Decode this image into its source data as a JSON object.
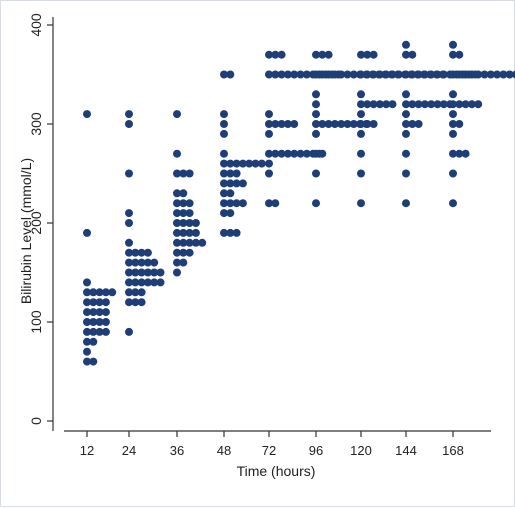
{
  "chart_data": {
    "type": "scatter",
    "xlabel": "Time (hours)",
    "ylabel": "Bilirubin Level (mmol/L)",
    "ylim": [
      0,
      400
    ],
    "yticks": [
      0,
      100,
      200,
      300,
      400
    ],
    "categories": [
      "12",
      "24",
      "36",
      "48",
      "72",
      "96",
      "120",
      "144",
      "168"
    ],
    "grid": false,
    "marker_color": "#1f3e78",
    "note": "Dot-strip scatter: each category shows stacked dots at bilirubin values; bracket [value, count] indicates number of dots drawn horizontally at that level.",
    "groups": [
      {
        "time": "12",
        "points": [
          [
            60,
            2
          ],
          [
            70,
            1
          ],
          [
            80,
            2
          ],
          [
            90,
            4
          ],
          [
            100,
            4
          ],
          [
            110,
            4
          ],
          [
            120,
            4
          ],
          [
            130,
            5
          ],
          [
            140,
            1
          ],
          [
            190,
            1
          ],
          [
            310,
            1
          ]
        ]
      },
      {
        "time": "24",
        "points": [
          [
            90,
            1
          ],
          [
            120,
            3
          ],
          [
            130,
            3
          ],
          [
            140,
            6
          ],
          [
            150,
            6
          ],
          [
            160,
            5
          ],
          [
            170,
            4
          ],
          [
            180,
            1
          ],
          [
            200,
            1
          ],
          [
            210,
            1
          ],
          [
            250,
            1
          ],
          [
            300,
            1
          ],
          [
            310,
            1
          ]
        ]
      },
      {
        "time": "36",
        "points": [
          [
            150,
            1
          ],
          [
            160,
            2
          ],
          [
            170,
            3
          ],
          [
            180,
            5
          ],
          [
            190,
            4
          ],
          [
            200,
            4
          ],
          [
            210,
            3
          ],
          [
            220,
            3
          ],
          [
            230,
            2
          ],
          [
            250,
            3
          ],
          [
            270,
            1
          ],
          [
            310,
            1
          ]
        ]
      },
      {
        "time": "48",
        "points": [
          [
            190,
            3
          ],
          [
            210,
            2
          ],
          [
            220,
            4
          ],
          [
            230,
            2
          ],
          [
            240,
            4
          ],
          [
            250,
            3
          ],
          [
            260,
            7
          ],
          [
            270,
            1
          ],
          [
            290,
            1
          ],
          [
            300,
            1
          ],
          [
            310,
            1
          ],
          [
            350,
            2
          ]
        ]
      },
      {
        "time": "72",
        "points": [
          [
            220,
            2
          ],
          [
            250,
            1
          ],
          [
            260,
            1
          ],
          [
            270,
            9
          ],
          [
            290,
            1
          ],
          [
            300,
            5
          ],
          [
            310,
            1
          ],
          [
            350,
            12
          ],
          [
            370,
            3
          ]
        ]
      },
      {
        "time": "96",
        "points": [
          [
            220,
            1
          ],
          [
            250,
            1
          ],
          [
            270,
            2
          ],
          [
            290,
            1
          ],
          [
            300,
            9
          ],
          [
            310,
            1
          ],
          [
            320,
            1
          ],
          [
            330,
            1
          ],
          [
            350,
            14
          ],
          [
            370,
            3
          ]
        ]
      },
      {
        "time": "120",
        "points": [
          [
            220,
            1
          ],
          [
            250,
            1
          ],
          [
            270,
            1
          ],
          [
            290,
            1
          ],
          [
            300,
            3
          ],
          [
            310,
            1
          ],
          [
            320,
            6
          ],
          [
            330,
            1
          ],
          [
            350,
            14
          ],
          [
            370,
            3
          ]
        ]
      },
      {
        "time": "144",
        "points": [
          [
            220,
            1
          ],
          [
            250,
            1
          ],
          [
            270,
            1
          ],
          [
            290,
            1
          ],
          [
            300,
            3
          ],
          [
            310,
            1
          ],
          [
            320,
            8
          ],
          [
            330,
            1
          ],
          [
            350,
            12
          ],
          [
            370,
            2
          ],
          [
            380,
            1
          ]
        ]
      },
      {
        "time": "168",
        "points": [
          [
            220,
            1
          ],
          [
            250,
            1
          ],
          [
            270,
            3
          ],
          [
            290,
            1
          ],
          [
            300,
            2
          ],
          [
            310,
            1
          ],
          [
            320,
            5
          ],
          [
            330,
            1
          ],
          [
            350,
            12
          ],
          [
            370,
            2
          ],
          [
            380,
            1
          ]
        ]
      }
    ]
  }
}
